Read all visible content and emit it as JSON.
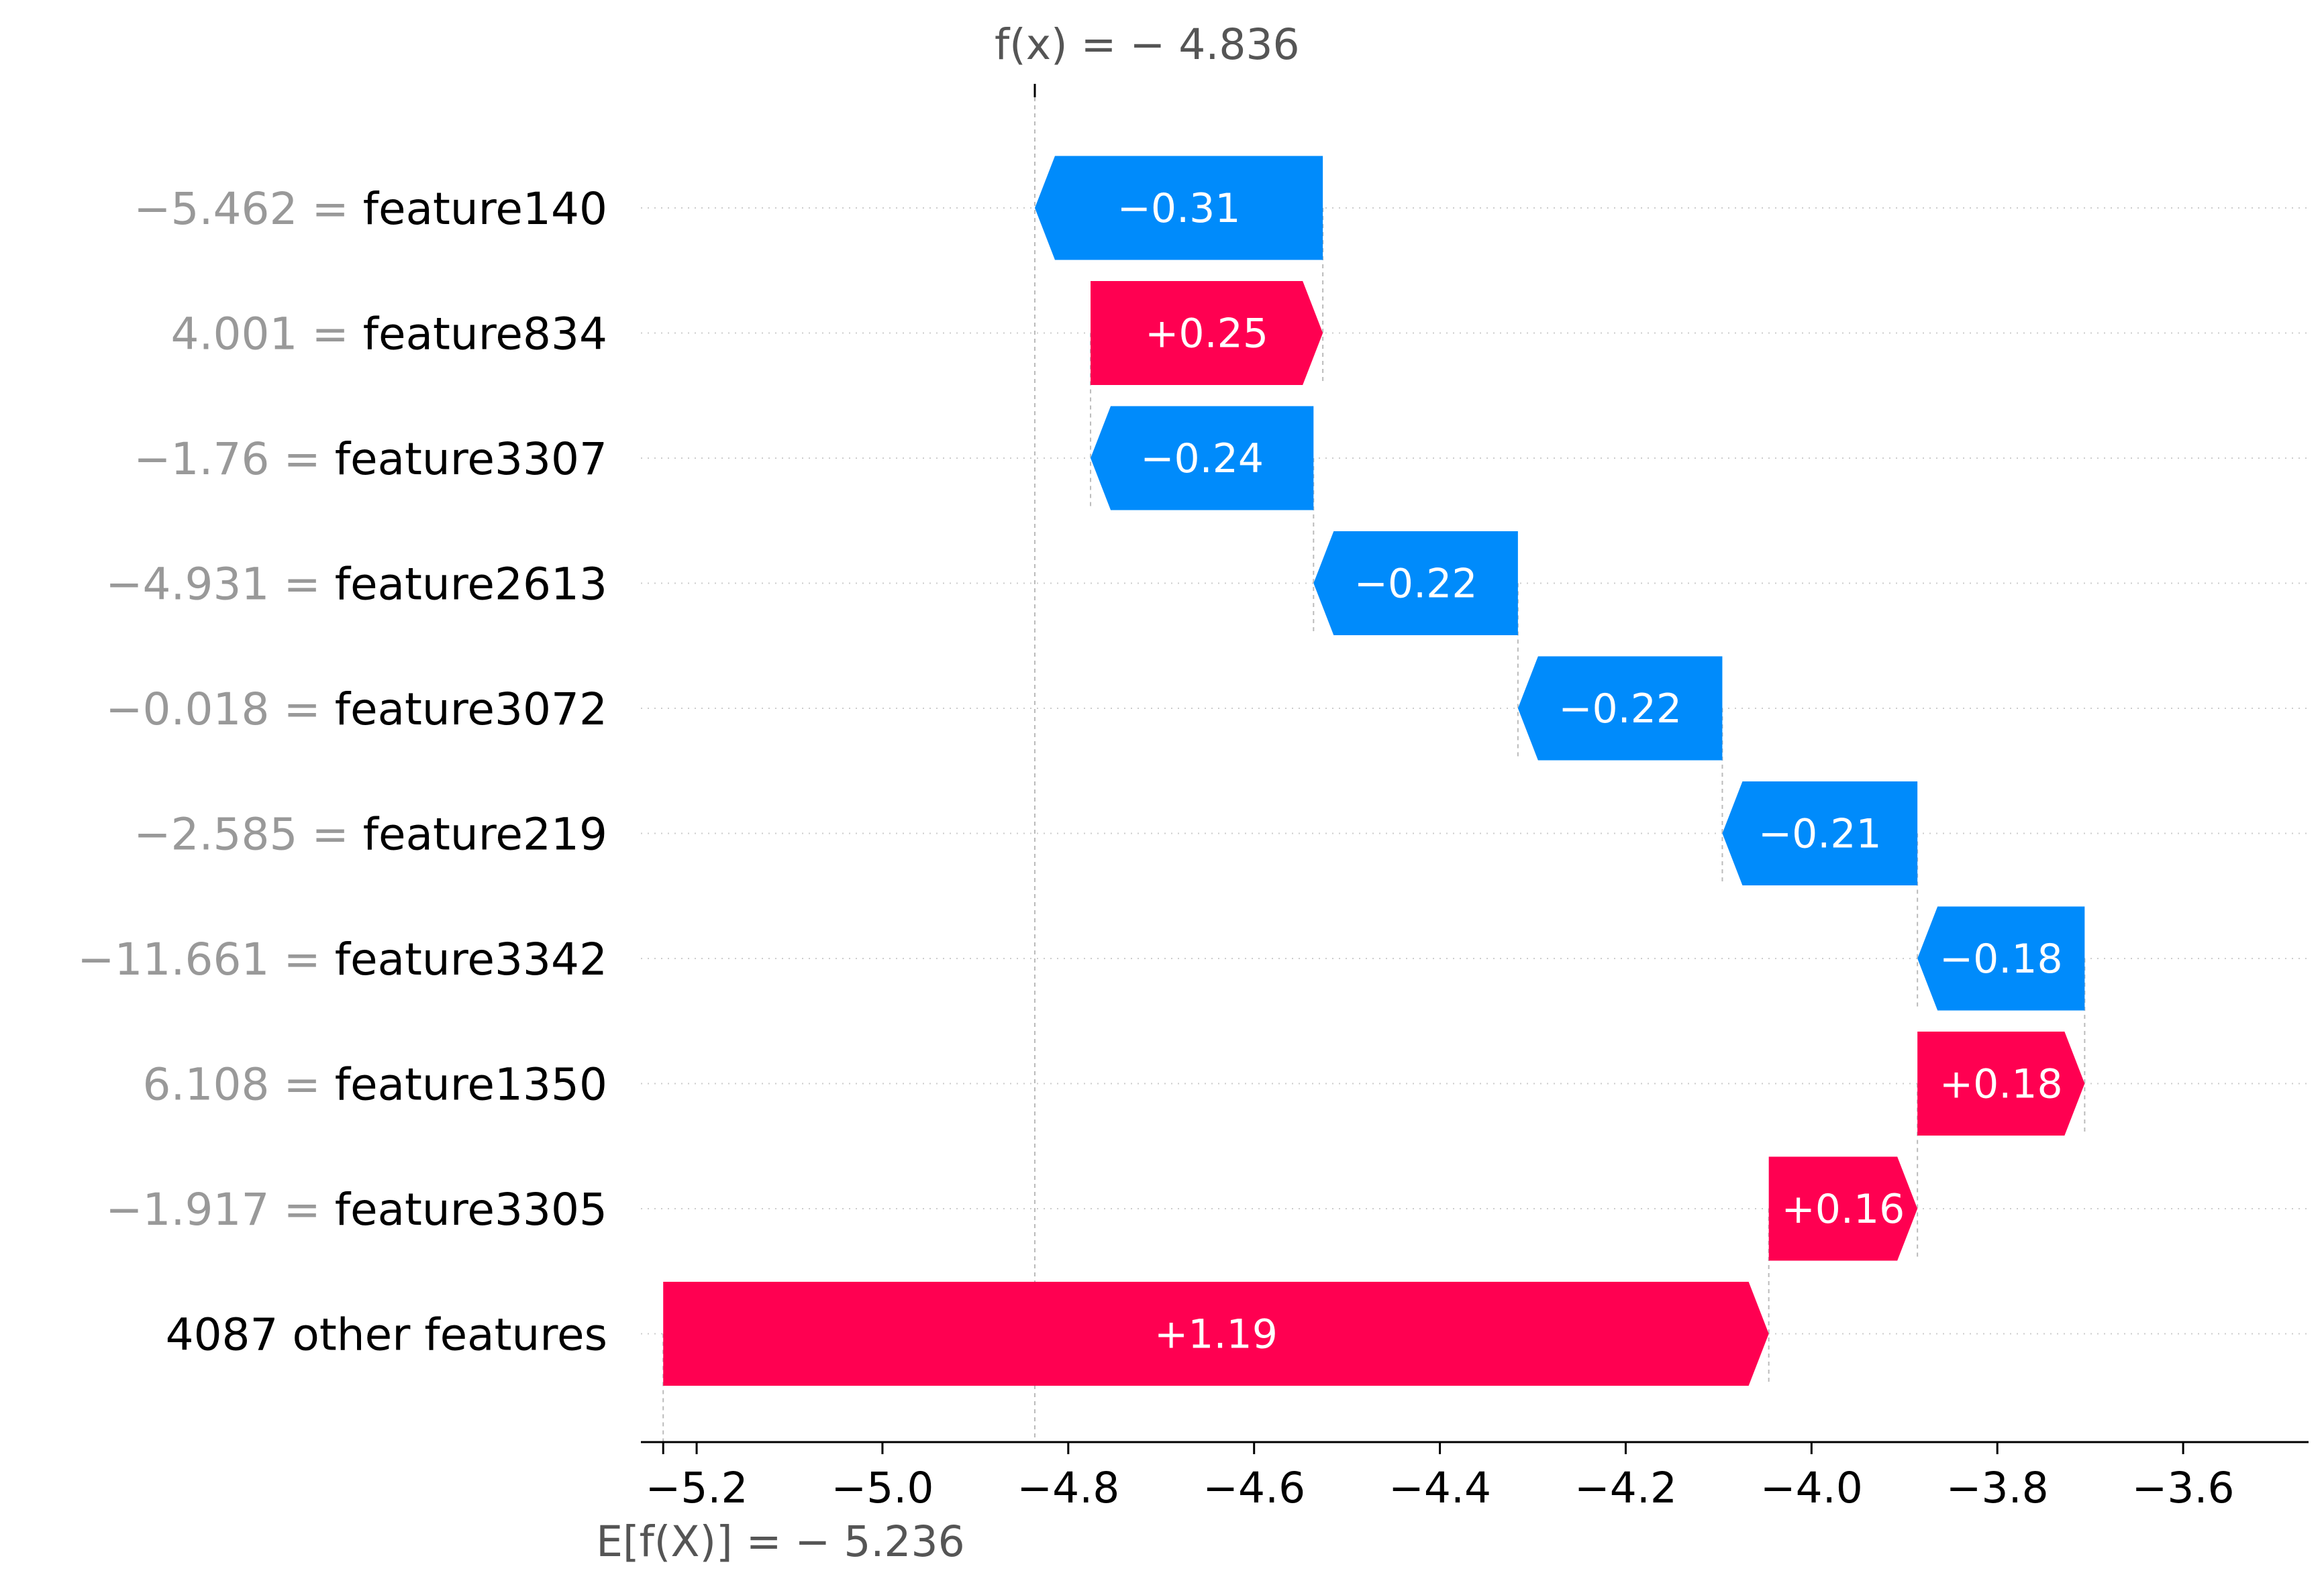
{
  "chart_data": {
    "type": "waterfall",
    "fx_label": "f(x) = − 4.836",
    "base_label": "E[f(X)] = − 5.236",
    "fx": -4.836,
    "base": -5.236,
    "xlim": [
      -5.26,
      -3.465
    ],
    "xticks": [
      -5.2,
      -5.0,
      -4.8,
      -4.6,
      -4.4,
      -4.2,
      -4.0,
      -3.8,
      -3.6
    ],
    "xtick_labels": [
      "−5.2",
      "−5.0",
      "−4.8",
      "−4.6",
      "−4.4",
      "−4.2",
      "−4.0",
      "−3.8",
      "−3.6"
    ],
    "grid": "horizontal dotted per row",
    "features": [
      {
        "value": "−5.462",
        "name": "feature140",
        "shap": -0.31,
        "label": "−0.31"
      },
      {
        "value": "4.001",
        "name": "feature834",
        "shap": 0.25,
        "label": "+0.25"
      },
      {
        "value": "−1.76",
        "name": "feature3307",
        "shap": -0.24,
        "label": "−0.24"
      },
      {
        "value": "−4.931",
        "name": "feature2613",
        "shap": -0.22,
        "label": "−0.22"
      },
      {
        "value": "−0.018",
        "name": "feature3072",
        "shap": -0.22,
        "label": "−0.22"
      },
      {
        "value": "−2.585",
        "name": "feature219",
        "shap": -0.21,
        "label": "−0.21"
      },
      {
        "value": "−11.661",
        "name": "feature3342",
        "shap": -0.18,
        "label": "−0.18"
      },
      {
        "value": "6.108",
        "name": "feature1350",
        "shap": 0.18,
        "label": "+0.18"
      },
      {
        "value": "−1.917",
        "name": "feature3305",
        "shap": 0.16,
        "label": "+0.16"
      },
      {
        "value": "",
        "name": "4087 other features",
        "shap": 1.19,
        "label": "+1.19"
      }
    ],
    "colors": {
      "negative": "#008bfb",
      "positive": "#ff0051",
      "value_text": "#999999",
      "name_text": "#000000",
      "grid": "#cccccc",
      "connector": "#bbbbbb"
    }
  }
}
